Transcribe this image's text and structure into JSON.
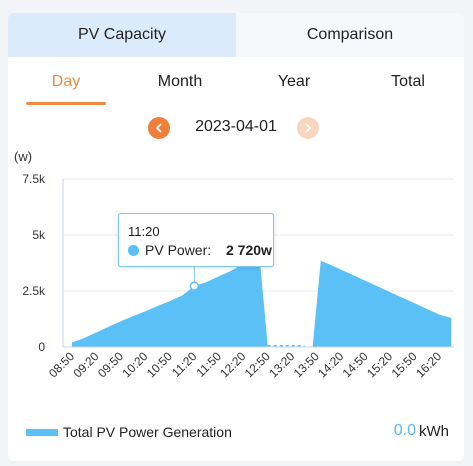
{
  "top_tabs": [
    {
      "label": "PV Capacity",
      "active": true
    },
    {
      "label": "Comparison",
      "active": false
    }
  ],
  "period_tabs": [
    {
      "label": "Day",
      "active": true
    },
    {
      "label": "Month",
      "active": false
    },
    {
      "label": "Year",
      "active": false
    },
    {
      "label": "Total",
      "active": false
    }
  ],
  "date_nav": {
    "date": "2023-04-01",
    "prev_icon": "chevron-left-icon",
    "next_icon": "chevron-right-icon"
  },
  "colors": {
    "accent": "#ef8a45",
    "series": "#5bc0f5",
    "total_value": "#5bb8f0"
  },
  "chart_data": {
    "type": "area",
    "unit_label": "(w)",
    "y_ticks": [
      "7.5k",
      "5k",
      "2.5k",
      "0"
    ],
    "ylim": [
      0,
      7500
    ],
    "x_ticks": [
      "08:50",
      "09:20",
      "09:50",
      "10:20",
      "10:50",
      "11:20",
      "11:50",
      "12:20",
      "12:50",
      "13:20",
      "13:50",
      "14:20",
      "14:50",
      "15:20",
      "15:50",
      "16:20"
    ],
    "grid": true,
    "legend_position": "bottom-left",
    "series": [
      {
        "name": "Total PV Power Generation",
        "x": [
          "08:50",
          "09:05",
          "09:20",
          "09:35",
          "09:50",
          "10:05",
          "10:20",
          "10:35",
          "10:50",
          "11:05",
          "11:20",
          "11:35",
          "11:50",
          "12:05",
          "12:20",
          "12:30",
          "12:40",
          "12:50",
          "13:05",
          "13:20",
          "13:35",
          "13:45",
          "13:55",
          "14:05",
          "14:20",
          "14:35",
          "14:50",
          "15:05",
          "15:20",
          "15:35",
          "15:50",
          "16:05",
          "16:20",
          "16:35"
        ],
        "values": [
          200,
          400,
          650,
          900,
          1150,
          1380,
          1600,
          1830,
          2050,
          2300,
          2720,
          2900,
          3150,
          3400,
          3700,
          3950,
          4000,
          0,
          0,
          0,
          0,
          0,
          3850,
          3700,
          3450,
          3200,
          2950,
          2700,
          2450,
          2200,
          1950,
          1700,
          1450,
          1300
        ]
      }
    ],
    "tooltip": {
      "time": "11:20",
      "series_label": "PV Power:",
      "value": "2 720w"
    }
  },
  "legend": {
    "label": "Total PV Power Generation"
  },
  "total": {
    "value": "0.0",
    "unit": "kWh"
  }
}
